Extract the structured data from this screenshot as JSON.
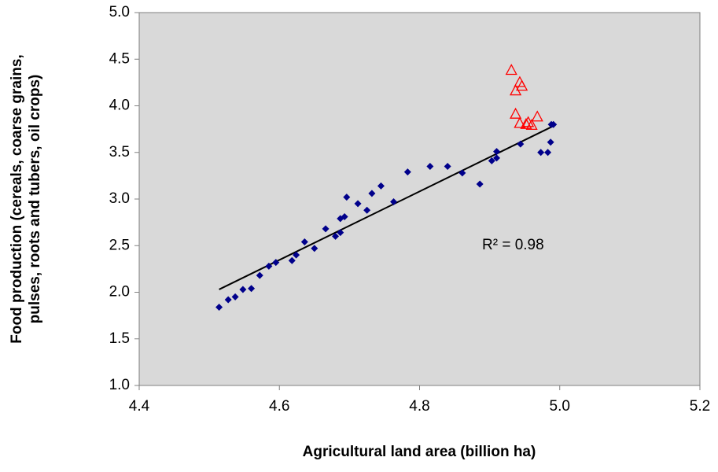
{
  "chart_data": {
    "type": "scatter",
    "x_label": "Agricultural land area (billion ha)",
    "y_label": [
      "Food production (cereals, coarse grains,",
      "pulses, roots and tubers, oil crops)"
    ],
    "annotation": "R² = 0.98",
    "xlim": [
      4.4,
      5.2
    ],
    "xticks": [
      4.4,
      4.6,
      4.8,
      {
        "value": 5.0,
        "label": "5.0"
      },
      5.2
    ],
    "ylim": [
      1.0,
      5.0
    ],
    "yticks": [
      {
        "value": 1.0,
        "label": "1.0"
      },
      1.5,
      {
        "value": 2.0,
        "label": "2.0"
      },
      2.5,
      {
        "value": 3.0,
        "label": "3.0"
      },
      3.5,
      {
        "value": 4.0,
        "label": "4.0"
      },
      4.5,
      {
        "value": 5.0,
        "label": "5.0"
      }
    ],
    "series": [
      {
        "color": "#00008b",
        "marker": "diamond",
        "x": [
          4.514,
          4.527,
          4.537,
          4.548,
          4.56,
          4.572,
          4.585,
          4.595,
          4.618,
          4.624,
          4.636,
          4.65,
          4.666,
          4.68,
          4.687,
          4.687,
          4.693,
          4.696,
          4.712,
          4.725,
          4.732,
          4.745,
          4.763,
          4.783,
          4.815,
          4.84,
          4.861,
          4.886,
          4.903,
          4.91,
          4.91,
          4.944,
          4.973,
          4.983,
          4.987,
          4.988,
          4.991
        ],
        "values": [
          1.84,
          1.92,
          1.95,
          2.03,
          2.04,
          2.18,
          2.28,
          2.32,
          2.34,
          2.4,
          2.54,
          2.47,
          2.68,
          2.6,
          2.64,
          2.79,
          2.81,
          3.02,
          2.95,
          2.88,
          3.06,
          3.14,
          2.97,
          3.29,
          3.35,
          3.35,
          3.28,
          3.16,
          3.41,
          3.51,
          3.44,
          3.59,
          3.5,
          3.5,
          3.61,
          3.8,
          3.8
        ]
      },
      {
        "color": "#ff0000",
        "marker": "triangle",
        "x": [
          4.931,
          4.937,
          4.943,
          4.946,
          4.937,
          4.943,
          4.952,
          4.955,
          4.96,
          4.968
        ],
        "values": [
          4.38,
          4.16,
          4.25,
          4.21,
          3.91,
          3.81,
          3.8,
          3.82,
          3.79,
          3.88
        ]
      }
    ],
    "trendline": {
      "color": "#000000",
      "x": [
        4.514,
        4.99
      ],
      "values": [
        2.03,
        3.78
      ]
    }
  }
}
